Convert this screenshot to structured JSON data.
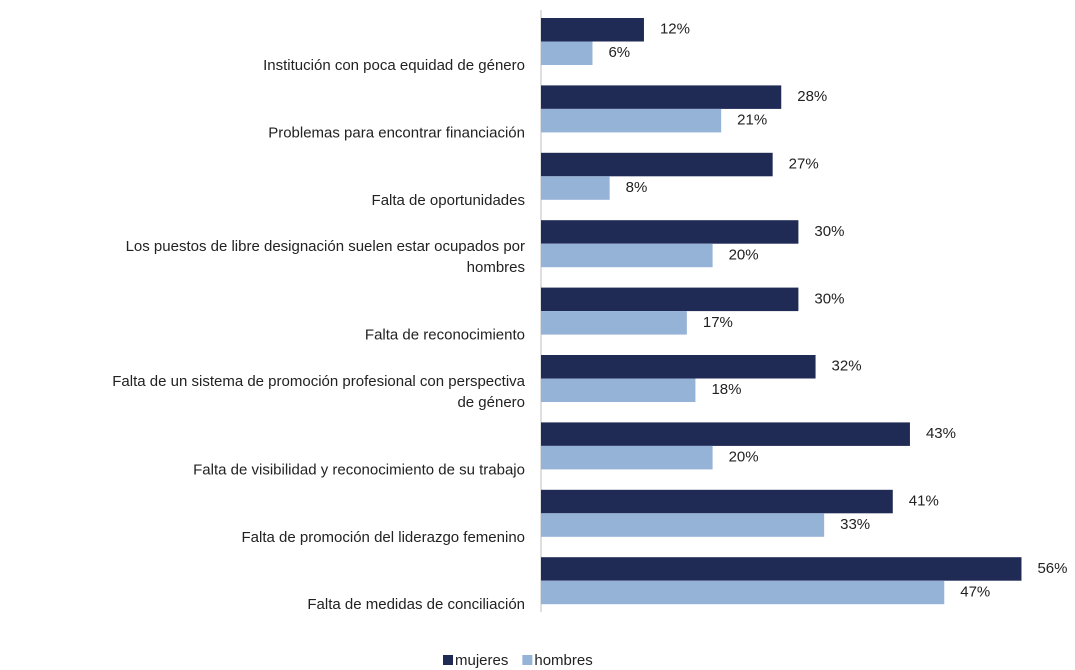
{
  "chart_data": {
    "type": "bar",
    "orientation": "horizontal",
    "categories": [
      "Institución con poca equidad de género",
      "Problemas para encontrar financiación",
      "Falta de oportunidades",
      "Los puestos de libre designación suelen estar ocupados por\nhombres",
      "Falta de reconocimiento",
      "Falta de un sistema de promoción profesional con perspectiva\nde género",
      "Falta de visibilidad y reconocimiento de su trabajo",
      "Falta de promoción del liderazgo femenino",
      "Falta de medidas de conciliación"
    ],
    "series": [
      {
        "name": "mujeres",
        "color": "#1f2a55",
        "values": [
          12,
          28,
          27,
          30,
          30,
          32,
          43,
          41,
          56
        ],
        "value_labels": [
          "12%",
          "28%",
          "27%",
          "30%",
          "30%",
          "32%",
          "43%",
          "41%",
          "56%"
        ]
      },
      {
        "name": "hombres",
        "color": "#95b3d7",
        "values": [
          6,
          21,
          8,
          20,
          17,
          18,
          20,
          33,
          47
        ],
        "value_labels": [
          "6%",
          "21%",
          "8%",
          "20%",
          "17%",
          "18%",
          "20%",
          "33%",
          "47%"
        ]
      }
    ],
    "legend": "bottom"
  }
}
